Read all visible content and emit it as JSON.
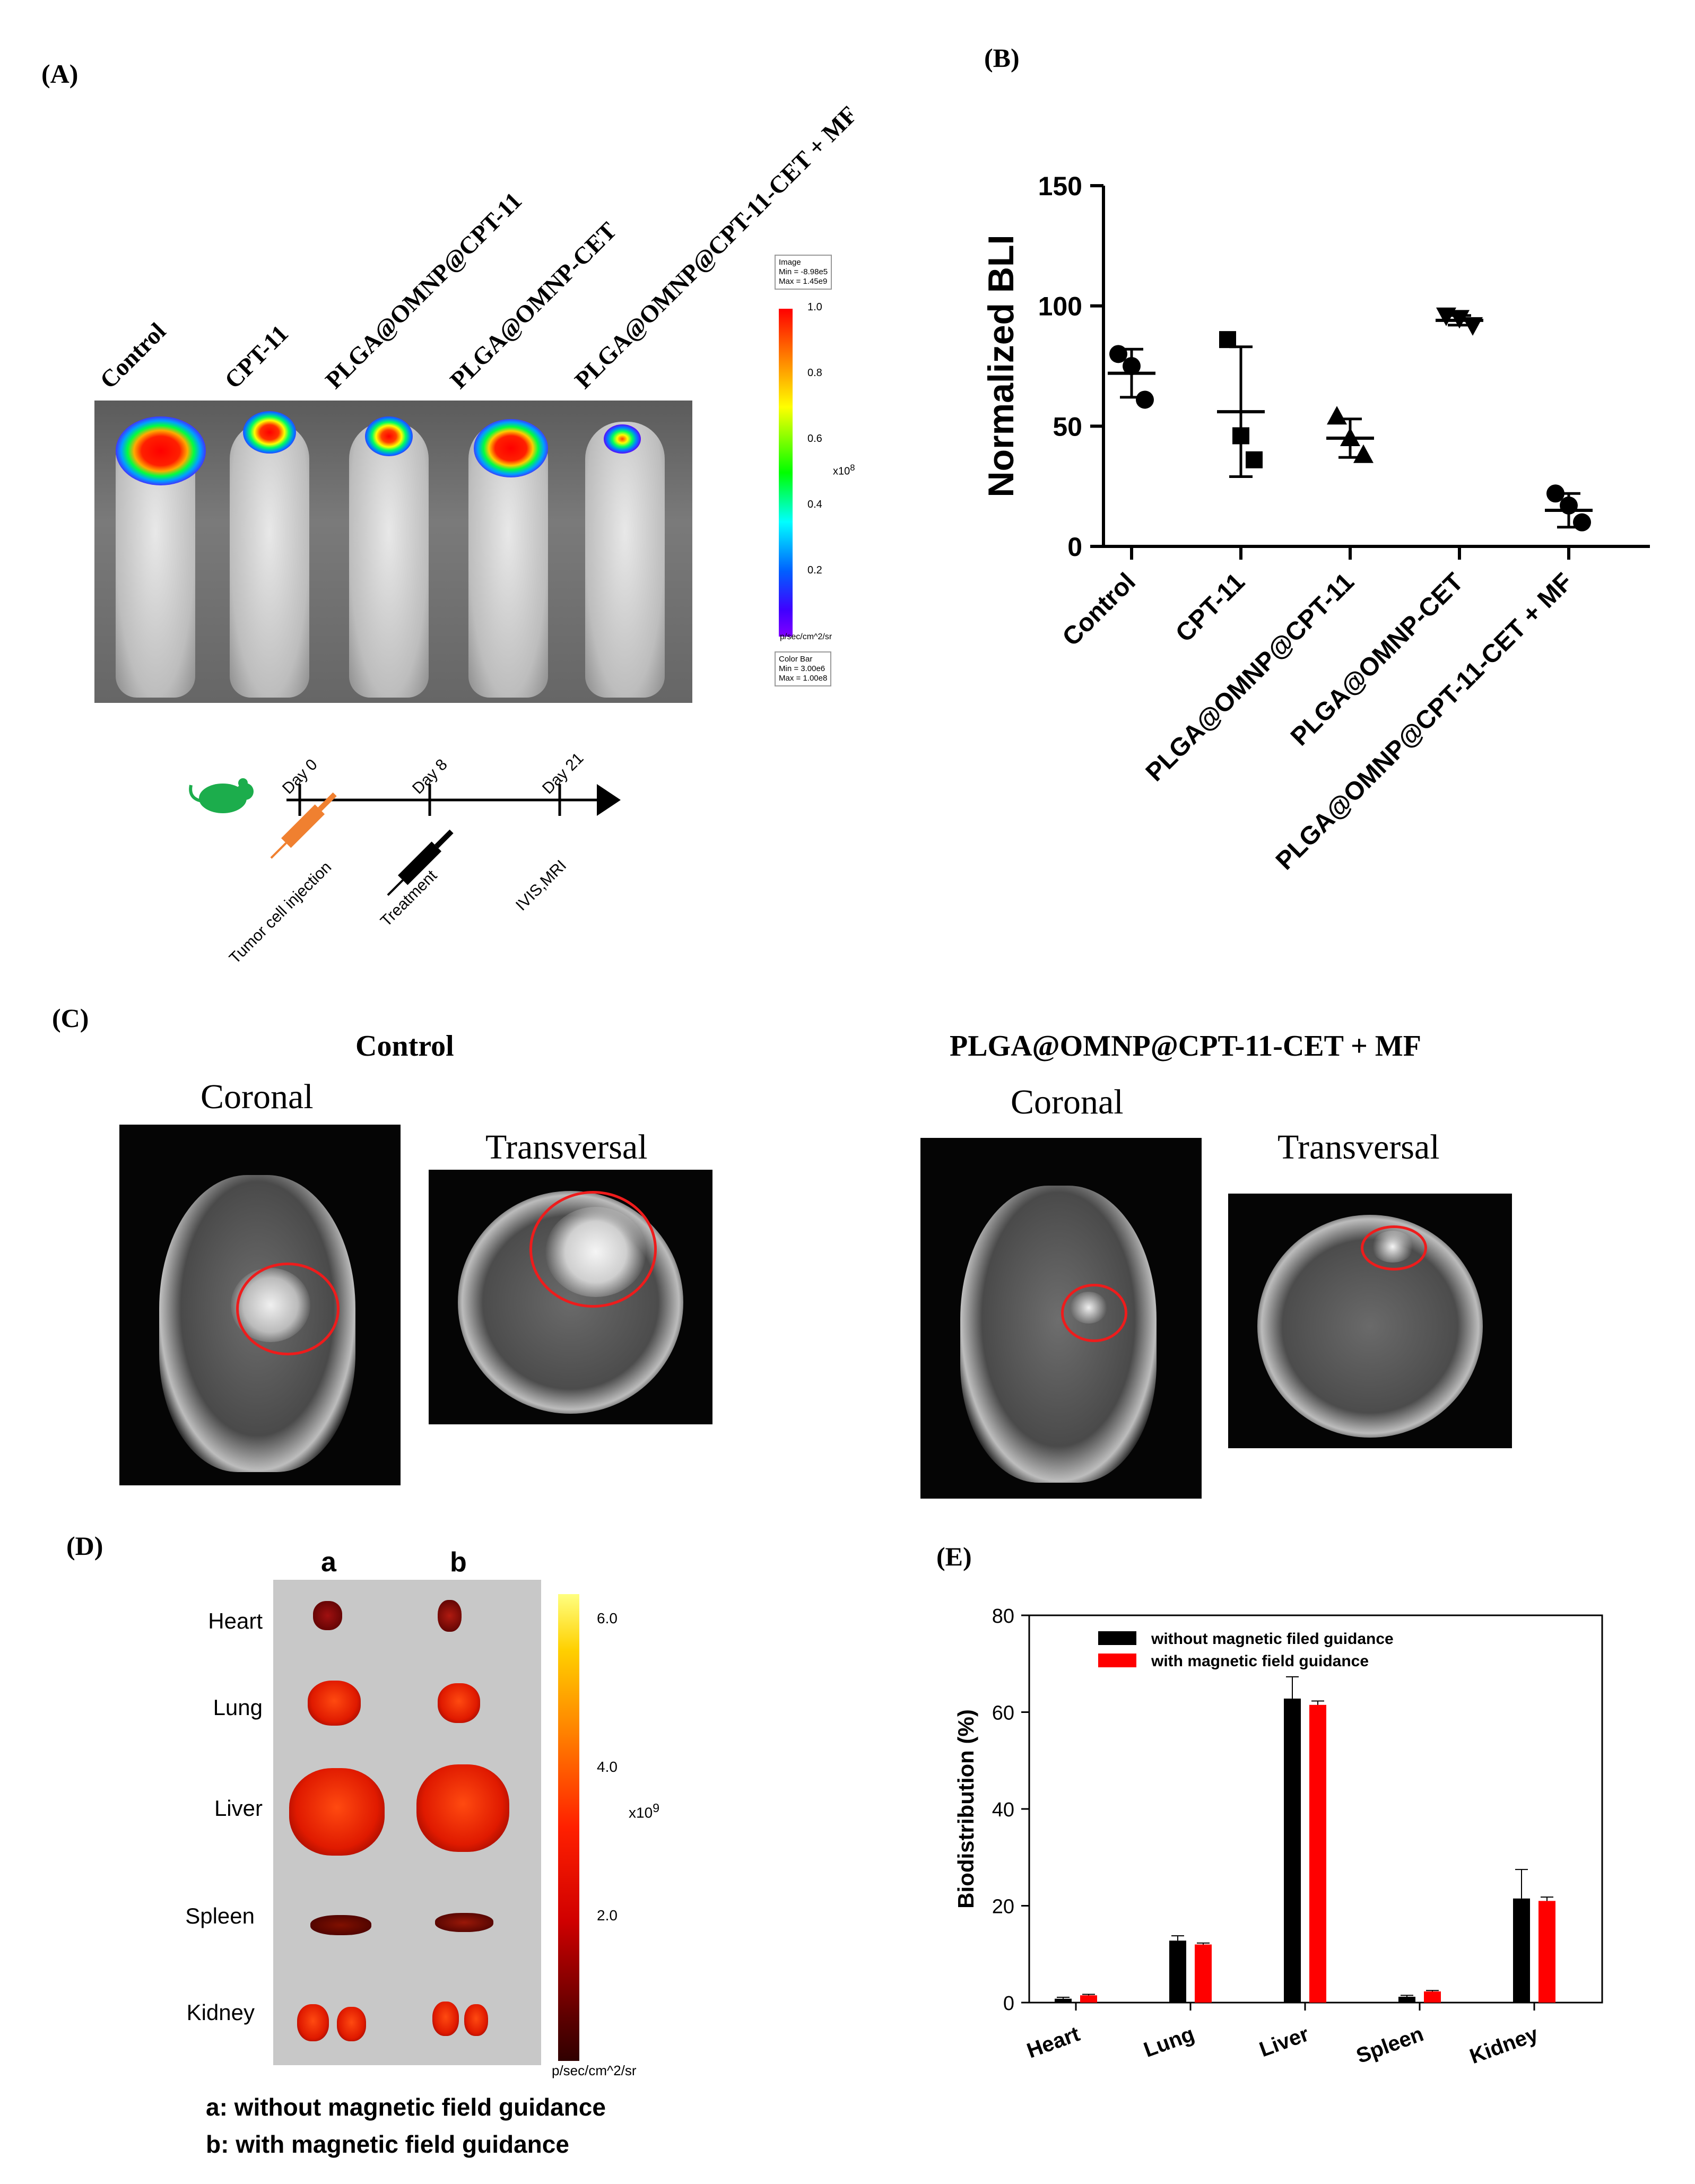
{
  "panelA": {
    "label": "(A)",
    "groups": [
      "Control",
      "CPT-11",
      "PLGA@OMNP@CPT-11",
      "PLGA@OMNP-CET",
      "PLGA@OMNP@CPT-11-CET + MF"
    ],
    "image_box": "Image\nMin = -8.98e5\nMax = 1.45e9",
    "colorbar_box": "Color Bar\nMin = 3.00e6\nMax = 1.00e8",
    "colorbar_ticks": [
      "1.0",
      "0.8",
      "0.6",
      "0.4",
      "0.2"
    ],
    "colorbar_exp": "x10",
    "colorbar_exp_power": "8",
    "colorbar_unit": "p/sec/cm^2/sr",
    "timeline": {
      "days": [
        "Day 0",
        "Day 8",
        "Day 21"
      ],
      "events": [
        "Tumor cell injection",
        "Treatment",
        "IVIS,MRI"
      ]
    }
  },
  "panelB": {
    "label": "(B)"
  },
  "panelC": {
    "label": "(C)",
    "left_title": "Control",
    "right_title": "PLGA@OMNP@CPT-11-CET + MF",
    "views": [
      "Coronal",
      "Transversal"
    ]
  },
  "panelD": {
    "label": "(D)",
    "columns": [
      "a",
      "b"
    ],
    "organs": [
      "Heart",
      "Lung",
      "Liver",
      "Spleen",
      "Kidney"
    ],
    "colorbar_ticks": [
      "6.0",
      "4.0",
      "2.0"
    ],
    "colorbar_exp": "x10",
    "colorbar_exp_power": "9",
    "colorbar_unit": "p/sec/cm^2/sr",
    "legend_a": "a: without magnetic field guidance",
    "legend_b": "b: with magnetic field guidance"
  },
  "panelE": {
    "label": "(E)"
  },
  "chart_data": [
    {
      "id": "B",
      "type": "scatter",
      "title": "",
      "xlabel": "",
      "ylabel": "Normalized BLI",
      "ylim": [
        0,
        150
      ],
      "yticks": [
        "0",
        "50",
        "100",
        "150"
      ],
      "categories": [
        "Control",
        "CPT-11",
        "PLGA@OMNP@CPT-11",
        "PLGA@OMNP-CET",
        "PLGA@OMNP@CPT-11-CET + MF"
      ],
      "markers": [
        "circle",
        "square",
        "triangle",
        "triangle-down",
        "circle"
      ],
      "points": [
        [
          80,
          75,
          61
        ],
        [
          86,
          46,
          36
        ],
        [
          54,
          45,
          38
        ],
        [
          96,
          95,
          92
        ],
        [
          22,
          17,
          10
        ]
      ],
      "mean": [
        72,
        56,
        45,
        94,
        15
      ],
      "sd": [
        10,
        27,
        8,
        2,
        7
      ]
    },
    {
      "id": "E",
      "type": "bar",
      "title": "",
      "xlabel": "",
      "ylabel": "Biodistribution (%)",
      "ylim": [
        0,
        80
      ],
      "yticks": [
        "0",
        "20",
        "40",
        "60",
        "80"
      ],
      "categories": [
        "Heart",
        "Lung",
        "Liver",
        "Spleen",
        "Kidney"
      ],
      "series": [
        {
          "name": "without magnetic filed guidance",
          "color": "#000000",
          "values": [
            0.8,
            12.8,
            62.8,
            1.2,
            21.5
          ],
          "errors": [
            0.3,
            1.0,
            4.5,
            0.3,
            6.0
          ]
        },
        {
          "name": "with magnetic field guidance",
          "color": "#ff0000",
          "values": [
            1.5,
            12.0,
            61.5,
            2.3,
            21.0
          ],
          "errors": [
            0.2,
            0.3,
            0.8,
            0.2,
            0.8
          ]
        }
      ]
    }
  ]
}
